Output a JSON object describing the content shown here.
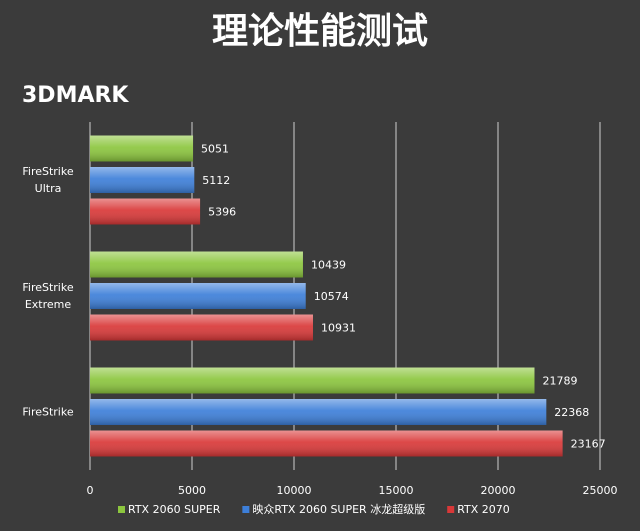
{
  "chart_data": {
    "type": "bar",
    "orientation": "horizontal",
    "title": "理论性能测试",
    "subtitle": "3DMARK",
    "categories": [
      "FireStrike Ultra",
      "FireStrike Extreme",
      "FireStrike"
    ],
    "series": [
      {
        "name": "RTX 2060 SUPER",
        "color": "#8cc63e",
        "values": [
          5051,
          10439,
          21789
        ]
      },
      {
        "name": "映众RTX 2060 SUPER 冰龙超级版",
        "color": "#3d7fd9",
        "values": [
          5112,
          10574,
          22368
        ]
      },
      {
        "name": "RTX 2070",
        "color": "#d93838",
        "values": [
          5396,
          10931,
          23167
        ]
      }
    ],
    "xlim": [
      0,
      25000
    ],
    "xticks": [
      0,
      5000,
      10000,
      15000,
      20000,
      25000
    ],
    "grid": true
  }
}
